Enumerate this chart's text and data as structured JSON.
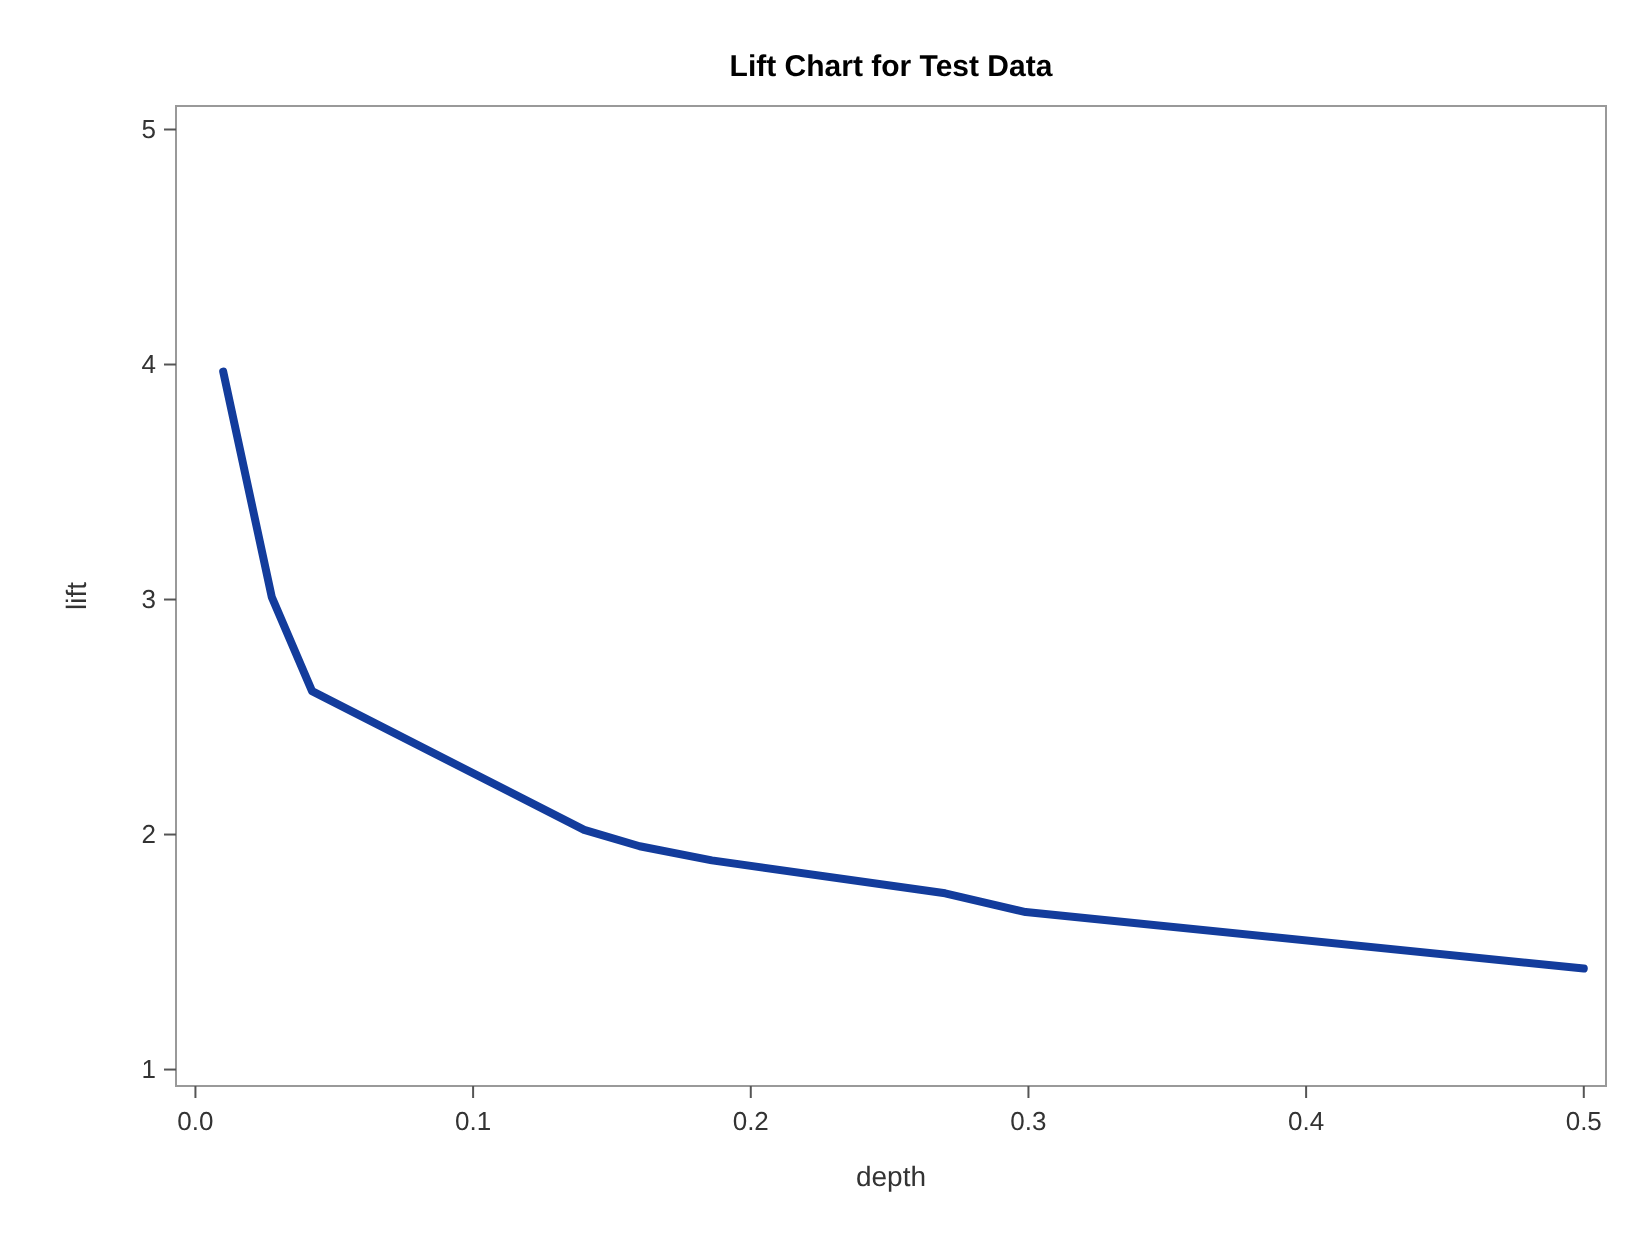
{
  "chart_data": {
    "type": "line",
    "title": "Lift Chart for Test Data",
    "xlabel": "depth",
    "ylabel": "lift",
    "x": [
      0.01,
      0.0275,
      0.042,
      0.14,
      0.16,
      0.186,
      0.27,
      0.299,
      0.5
    ],
    "series": [
      {
        "color": "#133c9c",
        "values": [
          3.97,
          3.01,
          2.61,
          2.02,
          1.95,
          1.89,
          1.75,
          1.67,
          1.43
        ]
      }
    ],
    "xlim": [
      -0.007,
      0.508
    ],
    "ylim": [
      0.93,
      5.1
    ],
    "xticks": [
      {
        "value": 0,
        "label": "0.0"
      },
      0.1,
      0.2,
      0.3,
      0.4,
      0.5
    ],
    "yticks": [
      1,
      2,
      3,
      4,
      5
    ],
    "grid": false,
    "marker": "none",
    "line_style": "solid"
  }
}
